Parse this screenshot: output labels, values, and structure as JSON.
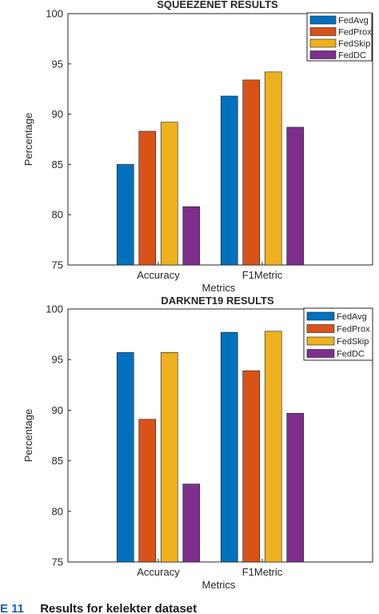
{
  "chart_data": [
    {
      "type": "bar",
      "title": "SQUEEZENET RESULTS",
      "xlabel": "Metrics",
      "ylabel": "Percentage",
      "ylim": [
        75,
        100
      ],
      "yticks": [
        75,
        80,
        85,
        90,
        95,
        100
      ],
      "categories": [
        "Accuracy",
        "F1Metric"
      ],
      "series": [
        {
          "name": "FedAvg",
          "color": "#0072BD",
          "values": [
            85.0,
            91.8
          ]
        },
        {
          "name": "FedProx",
          "color": "#D95319",
          "values": [
            88.3,
            93.4
          ]
        },
        {
          "name": "FedSkip",
          "color": "#EDB120",
          "values": [
            89.2,
            94.2
          ]
        },
        {
          "name": "FedDC",
          "color": "#7E2F8E",
          "values": [
            80.8,
            88.7
          ]
        }
      ],
      "legend": "top-right",
      "grid": false
    },
    {
      "type": "bar",
      "title": "DARKNET19 RESULTS",
      "xlabel": "Metrics",
      "ylabel": "Percentage",
      "ylim": [
        75,
        100
      ],
      "yticks": [
        75,
        80,
        85,
        90,
        95,
        100
      ],
      "categories": [
        "Accuracy",
        "F1Metric"
      ],
      "series": [
        {
          "name": "FedAvg",
          "color": "#0072BD",
          "values": [
            95.7,
            97.7
          ]
        },
        {
          "name": "FedProx",
          "color": "#D95319",
          "values": [
            89.1,
            93.9
          ]
        },
        {
          "name": "FedSkip",
          "color": "#EDB120",
          "values": [
            95.7,
            97.8
          ]
        },
        {
          "name": "FedDC",
          "color": "#7E2F8E",
          "values": [
            82.7,
            89.7
          ]
        }
      ],
      "legend": "top-right",
      "grid": false
    }
  ],
  "caption": {
    "number": "E 11",
    "text": "Results for kelekter dataset"
  }
}
